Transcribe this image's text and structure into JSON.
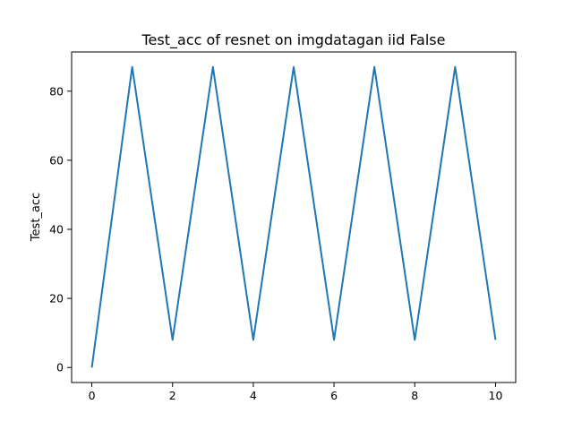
{
  "chart_data": {
    "type": "line",
    "title": "Test_acc of resnet on imgdatagan iid False",
    "xlabel": "",
    "ylabel": "Test_acc",
    "x": [
      0,
      1,
      2,
      3,
      4,
      5,
      6,
      7,
      8,
      9,
      10
    ],
    "series": [
      {
        "values": [
          0,
          87,
          8,
          87,
          8,
          87,
          8,
          87,
          8,
          87,
          8
        ]
      }
    ],
    "xlim": [
      -0.5,
      10.5
    ],
    "ylim": [
      -4.35,
      91.35
    ],
    "xticks": [
      0,
      2,
      4,
      6,
      8,
      10
    ],
    "yticks": [
      0,
      20,
      40,
      60,
      80
    ],
    "grid": false,
    "line_color": "#1f77b4"
  }
}
